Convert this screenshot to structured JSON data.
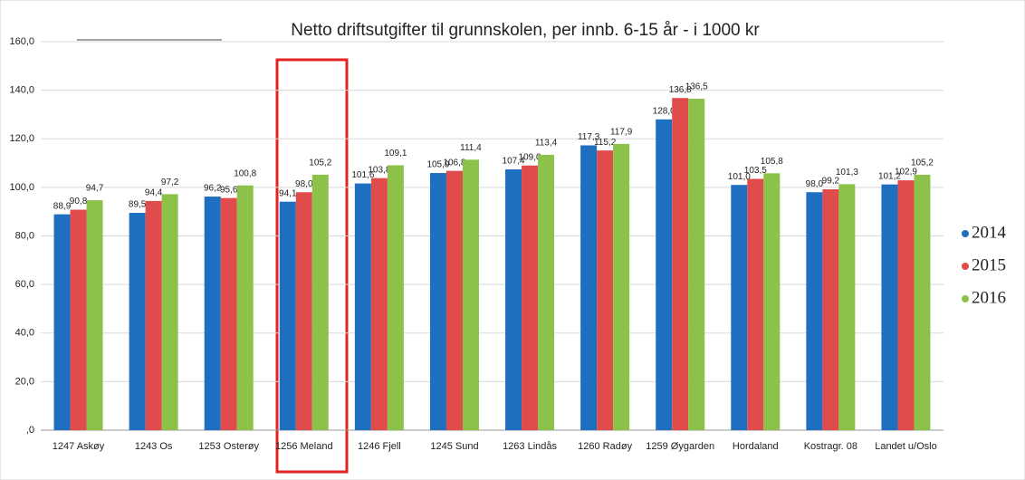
{
  "chart_data": {
    "type": "bar",
    "title": "Netto driftsutgifter til grunnskolen, per innb. 6-15 år - i 1000 kr",
    "categories": [
      "1247 Askøy",
      "1243 Os",
      "1253 Osterøy",
      "1256 Meland",
      "1246 Fjell",
      "1245 Sund",
      "1263 Lindås",
      "1260 Radøy",
      "1259 Øygarden",
      "Hordaland",
      "Kostragr. 08",
      "Landet u/Oslo"
    ],
    "series": [
      {
        "name": "2014",
        "color": "#1f6fc0",
        "values": [
          88.9,
          89.5,
          96.2,
          94.1,
          101.6,
          105.9,
          107.4,
          117.3,
          128.0,
          101.0,
          98.0,
          101.2
        ],
        "value_labels": [
          "88,9",
          "89,5",
          "96,2",
          "94,1",
          "101,6",
          "105,9",
          "107,4",
          "117,3",
          "128,0",
          "101,0",
          "98,0",
          "101,2"
        ]
      },
      {
        "name": "2015",
        "color": "#e04c4c",
        "values": [
          90.8,
          94.4,
          95.6,
          98.0,
          103.8,
          106.8,
          109.0,
          115.2,
          136.8,
          103.5,
          99.2,
          102.9
        ],
        "value_labels": [
          "90,8",
          "94,4",
          "95,6",
          "98,0",
          "103,8",
          "106,8",
          "109,0",
          "115,2",
          "136,8",
          "103,5",
          "99,2",
          "102,9"
        ]
      },
      {
        "name": "2016",
        "color": "#8cc24a",
        "values": [
          94.7,
          97.2,
          100.8,
          105.2,
          109.1,
          111.4,
          113.4,
          117.9,
          136.5,
          105.8,
          101.3,
          105.2
        ],
        "value_labels": [
          "94,7",
          "97,2",
          "100,8",
          "105,2",
          "109,1",
          "111,4",
          "113,4",
          "117,9",
          "136,5",
          "105,8",
          "101,3",
          "105,2"
        ]
      }
    ],
    "ylim": [
      0,
      160
    ],
    "yticks": [
      {
        "value": 0,
        "label": ",0"
      },
      {
        "value": 20,
        "label": "20,0"
      },
      {
        "value": 40,
        "label": "40,0"
      },
      {
        "value": 60,
        "label": "60,0"
      },
      {
        "value": 80,
        "label": "80,0"
      },
      {
        "value": 100,
        "label": "100,0"
      },
      {
        "value": 120,
        "label": "120,0"
      },
      {
        "value": 140,
        "label": "140,0"
      },
      {
        "value": 160,
        "label": "160,0"
      }
    ],
    "grid": true,
    "legend": "right"
  }
}
